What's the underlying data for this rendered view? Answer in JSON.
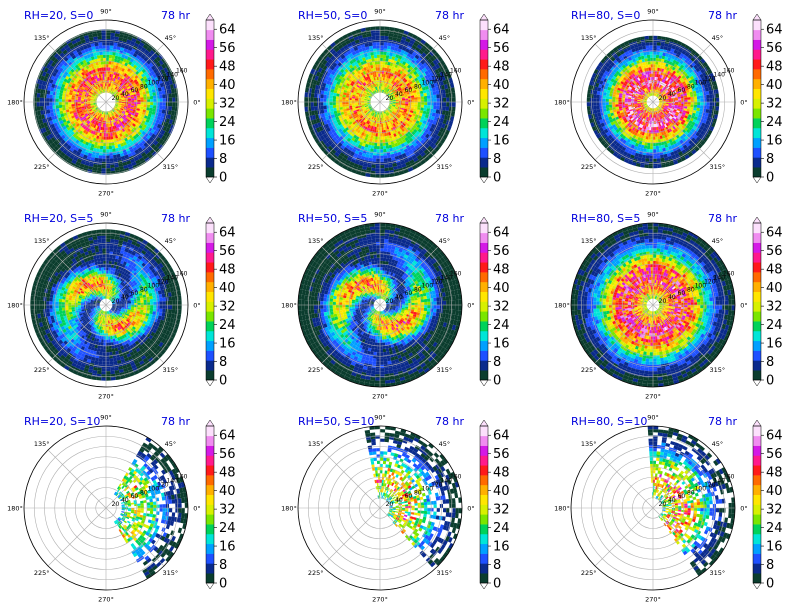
{
  "figure": {
    "panels": [
      {
        "title": "RH=20, S=0",
        "time": "78 hr"
      },
      {
        "title": "RH=50, S=0",
        "time": "78 hr"
      },
      {
        "title": "RH=80, S=0",
        "time": "78 hr"
      },
      {
        "title": "RH=20, S=5",
        "time": "78 hr"
      },
      {
        "title": "RH=50, S=5",
        "time": "78 hr"
      },
      {
        "title": "RH=80, S=5",
        "time": "78 hr"
      },
      {
        "title": "RH=20, S=10",
        "time": "78 hr"
      },
      {
        "title": "RH=50, S=10",
        "time": "78 hr"
      },
      {
        "title": "RH=80, S=10",
        "time": "78 hr"
      }
    ]
  },
  "chart_data": {
    "type": "heatmap",
    "projection": "polar",
    "layout": "3x3 grid of polar plots",
    "angle_ticks": [
      "0°",
      "45°",
      "90°",
      "135°",
      "180°",
      "225°",
      "270°",
      "315°"
    ],
    "radial_ticks": [
      "20",
      "40",
      "60",
      "80",
      "100",
      "120",
      "140",
      "160"
    ],
    "rlim": [
      0,
      160
    ],
    "grid": true,
    "colorbar": {
      "ticks": [
        "0",
        "8",
        "16",
        "24",
        "32",
        "40",
        "48",
        "56",
        "64"
      ],
      "range": [
        0,
        68
      ],
      "extend": "both",
      "colors": [
        "#0b3d2e",
        "#0a2a8c",
        "#1e50ff",
        "#00a0ff",
        "#00e5d8",
        "#00d25a",
        "#7ae600",
        "#d7f000",
        "#ffe600",
        "#ffb000",
        "#ff6a00",
        "#ff1a1a",
        "#ff1a8c",
        "#d41ae6",
        "#f08cf0",
        "#fce0fc"
      ]
    },
    "panels": [
      {
        "rh": 20,
        "s": 0,
        "pattern": "ring",
        "inner": 16,
        "outer": 142,
        "cover": [
          0,
          360
        ],
        "peak": 46
      },
      {
        "rh": 50,
        "s": 0,
        "pattern": "ring",
        "inner": 16,
        "outer": 148,
        "cover": [
          0,
          360
        ],
        "peak": 40
      },
      {
        "rh": 80,
        "s": 0,
        "pattern": "ring",
        "inner": 12,
        "outer": 132,
        "cover": [
          0,
          360
        ],
        "peak": 54
      },
      {
        "rh": 20,
        "s": 5,
        "pattern": "spiral",
        "inner": 10,
        "outer": 150,
        "cover": [
          0,
          360
        ],
        "peak": 42
      },
      {
        "rh": 50,
        "s": 5,
        "pattern": "spiral",
        "inner": 10,
        "outer": 160,
        "cover": [
          0,
          360
        ],
        "peak": 44
      },
      {
        "rh": 80,
        "s": 5,
        "pattern": "ring",
        "inner": 14,
        "outer": 160,
        "cover": [
          0,
          360
        ],
        "peak": 50
      },
      {
        "rh": 20,
        "s": 10,
        "pattern": "sector",
        "inner": 30,
        "outer": 160,
        "cover": [
          300,
          60
        ],
        "peak": 36
      },
      {
        "rh": 50,
        "s": 10,
        "pattern": "sector",
        "inner": 20,
        "outer": 160,
        "cover": [
          310,
          100
        ],
        "peak": 42
      },
      {
        "rh": 80,
        "s": 10,
        "pattern": "sector",
        "inner": 20,
        "outer": 160,
        "cover": [
          305,
          95
        ],
        "peak": 48
      }
    ]
  }
}
